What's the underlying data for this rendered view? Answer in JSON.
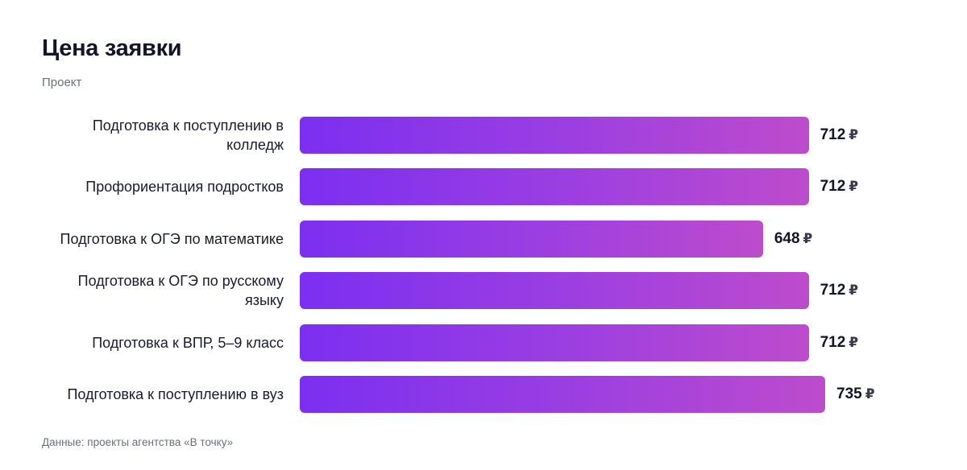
{
  "chart_data": {
    "type": "bar",
    "orientation": "horizontal",
    "title": "Цена заявки",
    "subtitle": "Проект",
    "categories": [
      "Подготовка к поступлению в колледж",
      "Профориентация подростков",
      "Подготовка к ОГЭ по математике",
      "Подготовка к ОГЭ по русскому языку",
      "Подготовка к ВПР, 5–9 класс",
      "Подготовка к поступлению в вуз"
    ],
    "values": [
      712,
      712,
      648,
      712,
      712,
      735
    ],
    "value_labels": [
      "712",
      "712",
      "648",
      "712",
      "712",
      "735"
    ],
    "currency": "₽",
    "xlim": [
      0,
      735
    ],
    "grid": false,
    "legend": "none",
    "bar_gradient": [
      "#7b2ff0",
      "#bd4ccc"
    ],
    "source": "Данные: проекты агентства «В точку»"
  }
}
